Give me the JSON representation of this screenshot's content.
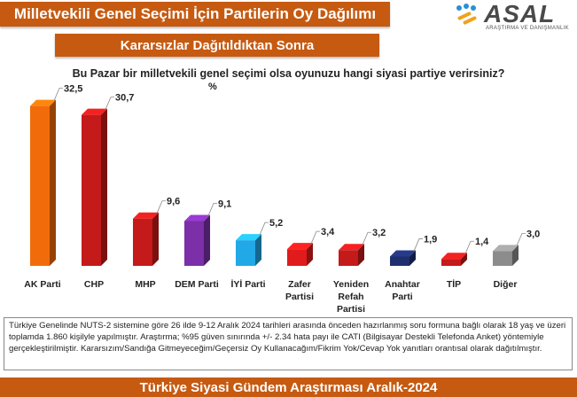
{
  "header": {
    "title": "Milletvekili Genel Seçimi İçin Partilerin Oy Dağılımı",
    "subtitle": "Kararsızlar Dağıtıldıktan Sonra"
  },
  "logo": {
    "name": "ASAL",
    "tagline": "ARAŞTIRMA VE DANIŞMANLIK"
  },
  "question": "Bu Pazar bir milletvekili genel seçimi olsa oyunuzu hangi siyasi partiye verirsiniz?",
  "unit": "%",
  "chart_data": {
    "type": "bar",
    "categories": [
      "AK Parti",
      "CHP",
      "MHP",
      "DEM Parti",
      "İYİ Parti",
      "Zafer Partisi",
      "Yeniden Refah Partisi",
      "Anahtar Parti",
      "TİP",
      "Diğer"
    ],
    "values": [
      32.5,
      30.7,
      9.6,
      9.1,
      5.2,
      3.4,
      3.2,
      1.9,
      1.4,
      3.0
    ],
    "value_labels": [
      "32,5",
      "30,7",
      "9,6",
      "9,1",
      "5,2",
      "3,4",
      "3,2",
      "1,9",
      "1,4",
      "3,0"
    ],
    "category_lines": [
      [
        "AK Parti"
      ],
      [
        "CHP"
      ],
      [
        "MHP"
      ],
      [
        "DEM Parti"
      ],
      [
        "İYİ Parti"
      ],
      [
        "Zafer",
        "Partisi"
      ],
      [
        "Yeniden",
        "Refah",
        "Partisi"
      ],
      [
        "Anahtar",
        "Parti"
      ],
      [
        "TİP"
      ],
      [
        "Diğer"
      ]
    ],
    "colors": [
      "#f26b0a",
      "#c41a1a",
      "#c41a1a",
      "#7b2fa8",
      "#21a8e6",
      "#e01b1b",
      "#c41a1a",
      "#1f2f6e",
      "#c41a1a",
      "#8c8c8c"
    ],
    "ylim": [
      0,
      35
    ],
    "grid": false,
    "legend": "none"
  },
  "footer": {
    "text": "Türkiye Genelinde NUTS-2 sistemine göre 26 ilde 9-12 Aralık 2024 tarihleri arasında önceden hazırlanmış soru formuna bağlı olarak 18 yaş ve üzeri toplamda 1.860 kişilyle yapılmıştır. Araştırma; %95 güven sınırında +/- 2.34 hata payı ile CATI (Bilgisayar Destekli Telefonda Anket) yöntemiyle gerçekleştirilmiştir. Kararsızım/Sandığa Gitmeyeceğim/Geçersiz Oy Kullanacağım/Fikrim Yok/Cevap Yok yanıtları orantısal olarak dağıtılmıştır."
  },
  "bottom_banner": "Türkiye Siyasi Gündem Araştırması Aralık-2024"
}
